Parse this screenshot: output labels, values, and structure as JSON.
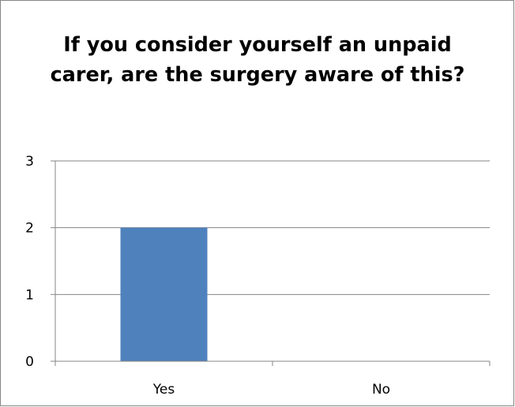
{
  "chart_data": {
    "type": "bar",
    "title": "If you consider yourself an unpaid carer, are the surgery aware of this?",
    "categories": [
      "Yes",
      "No"
    ],
    "values": [
      2,
      0
    ],
    "xlabel": "",
    "ylabel": "",
    "ylim": [
      0,
      3
    ],
    "yticks": [
      "0",
      "1",
      "2",
      "3"
    ],
    "grid": true,
    "legend": "none",
    "bar_color": "#4f81bd",
    "grid_color": "#868686"
  }
}
